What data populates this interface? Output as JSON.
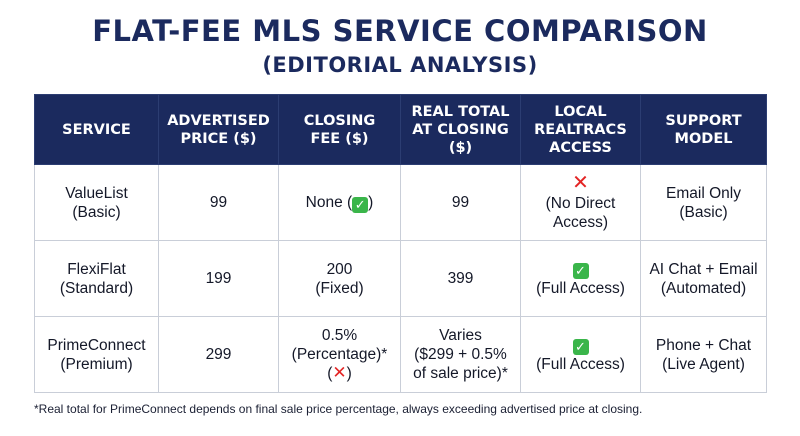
{
  "title": "FLAT-FEE MLS SERVICE COMPARISON",
  "subtitle": "(EDITORIAL ANALYSIS)",
  "table": {
    "headers": [
      [
        "SERVICE"
      ],
      [
        "ADVERTISED",
        "PRICE ($)"
      ],
      [
        "CLOSING",
        "FEE ($)"
      ],
      [
        "REAL TOTAL",
        "AT CLOSING ($)"
      ],
      [
        "LOCAL",
        "REALTRACS",
        "ACCESS"
      ],
      [
        "SUPPORT",
        "MODEL"
      ]
    ],
    "rows": [
      {
        "service": [
          "ValueList",
          "(Basic)"
        ],
        "advertised_price": "99",
        "closing_fee": {
          "text": "None (",
          "icon": "check-icon",
          "after": ")"
        },
        "real_total": [
          "99"
        ],
        "access": {
          "icon": "cross-icon",
          "lines": [
            "(No Direct",
            "Access)"
          ]
        },
        "support": [
          "Email Only",
          "(Basic)"
        ]
      },
      {
        "service": [
          "FlexiFlat",
          "(Standard)"
        ],
        "advertised_price": "199",
        "closing_fee": {
          "lines": [
            "200",
            "(Fixed)"
          ]
        },
        "real_total": [
          "399"
        ],
        "access": {
          "icon": "check-icon",
          "lines": [
            "(Full Access)"
          ]
        },
        "support": [
          "AI Chat + Email",
          "(Automated)"
        ]
      },
      {
        "service": [
          "PrimeConnect",
          "(Premium)"
        ],
        "advertised_price": "299",
        "closing_fee": {
          "lines": [
            "0.5%",
            "(Percentage)*"
          ],
          "icon": "cross-icon"
        },
        "real_total": [
          "Varies",
          "($299 + 0.5%",
          "of sale price)*"
        ],
        "access": {
          "icon": "check-icon",
          "lines": [
            "(Full Access)"
          ]
        },
        "support": [
          "Phone + Chat",
          "(Live Agent)"
        ]
      }
    ]
  },
  "footnote": "*Real total for PrimeConnect depends on final sale price percentage, always exceeding advertised price at closing.",
  "colors": {
    "header_bg": "#1b2a5e",
    "title": "#1b2a5e",
    "check": "#3ab54a",
    "cross": "#e32424"
  }
}
